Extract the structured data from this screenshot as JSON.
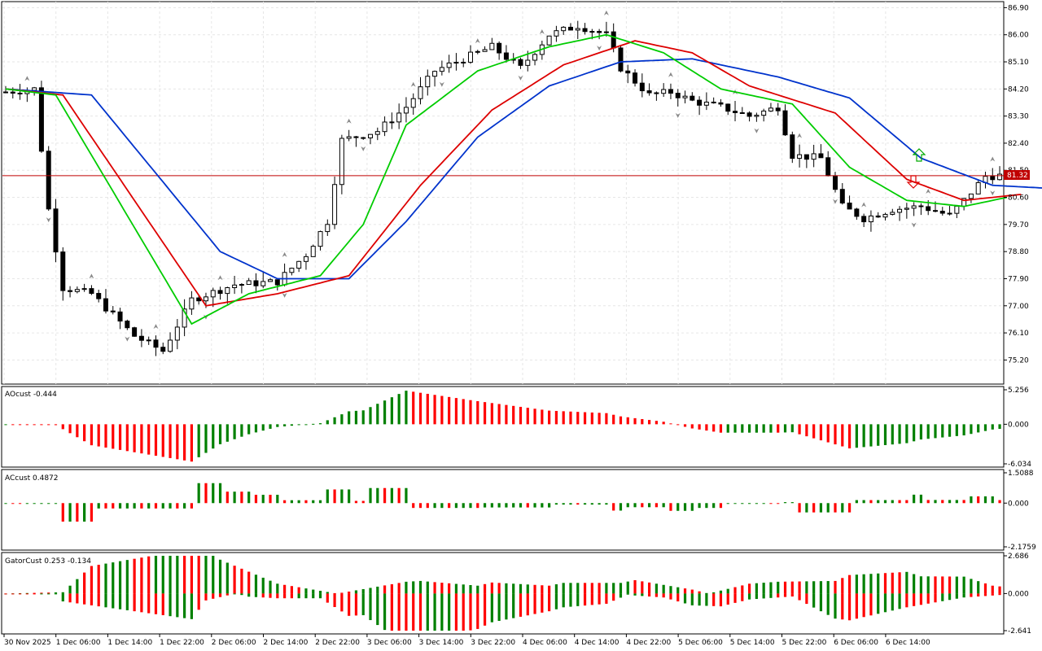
{
  "colors": {
    "up_bar": "#008000",
    "down_bar": "#ff0000",
    "jaw": "#0033cc",
    "teeth": "#dd0000",
    "lips": "#00cc00",
    "price_line": "#c00000",
    "grid": "#e6e6e6",
    "candle": "#000000",
    "fractal": "#888888"
  },
  "price_pane": {
    "current_price": "81.32",
    "y_ticks": [
      "86.90",
      "86.00",
      "85.10",
      "84.20",
      "83.30",
      "82.40",
      "81.50",
      "80.60",
      "79.70",
      "78.80",
      "77.90",
      "77.00",
      "76.10",
      "75.20"
    ],
    "y_range": [
      74.4,
      87.1
    ]
  },
  "ao_pane": {
    "label": "AOcust -0.444",
    "y_ticks": [
      "5.256",
      "0.000",
      "-6.034"
    ]
  },
  "ac_pane": {
    "label": "ACcust 0.4872",
    "y_ticks": [
      "1.5088",
      "0.000",
      "-2.1759"
    ]
  },
  "gator_pane": {
    "label": "GatorCust 0.253 -0.134",
    "y_ticks": [
      "2.686",
      "0.000",
      "-2.641"
    ]
  },
  "x_labels": [
    "30 Nov 2025",
    "1 Dec 06:00",
    "1 Dec 14:00",
    "1 Dec 22:00",
    "2 Dec 06:00",
    "2 Dec 14:00",
    "2 Dec 22:00",
    "3 Dec 06:00",
    "3 Dec 14:00",
    "3 Dec 22:00",
    "4 Dec 06:00",
    "4 Dec 14:00",
    "4 Dec 22:00",
    "5 Dec 06:00",
    "5 Dec 14:00",
    "5 Dec 22:00",
    "6 Dec 06:00",
    "6 Dec 14:00"
  ],
  "chart_data": {
    "type": "candlestick",
    "symbol_panes": [
      "price",
      "AOcust",
      "ACcust",
      "GatorCust"
    ],
    "price_keypoints": [
      [
        0,
        84.1
      ],
      [
        4,
        84.2
      ],
      [
        6,
        80.2
      ],
      [
        8,
        77.6
      ],
      [
        12,
        77.4
      ],
      [
        18,
        76.0
      ],
      [
        22,
        75.5
      ],
      [
        26,
        77.2
      ],
      [
        32,
        77.7
      ],
      [
        38,
        77.8
      ],
      [
        42,
        78.7
      ],
      [
        45,
        79.8
      ],
      [
        47,
        82.5
      ],
      [
        52,
        82.8
      ],
      [
        56,
        83.6
      ],
      [
        60,
        84.8
      ],
      [
        63,
        85.1
      ],
      [
        68,
        85.6
      ],
      [
        72,
        84.9
      ],
      [
        76,
        86.0
      ],
      [
        80,
        86.3
      ],
      [
        84,
        86.0
      ],
      [
        86,
        84.9
      ],
      [
        90,
        84.0
      ],
      [
        93,
        84.1
      ],
      [
        96,
        83.8
      ],
      [
        100,
        83.6
      ],
      [
        104,
        83.3
      ],
      [
        108,
        83.6
      ],
      [
        110,
        82.0
      ],
      [
        114,
        81.9
      ],
      [
        117,
        80.3
      ],
      [
        120,
        79.9
      ],
      [
        124,
        80.2
      ],
      [
        128,
        80.3
      ],
      [
        132,
        80.0
      ],
      [
        134,
        80.5
      ],
      [
        137,
        81.3
      ],
      [
        139,
        81.32
      ]
    ],
    "jaw_keypoints": [
      [
        0,
        84.2
      ],
      [
        12,
        84.0
      ],
      [
        30,
        78.8
      ],
      [
        38,
        77.9
      ],
      [
        48,
        77.9
      ],
      [
        56,
        79.8
      ],
      [
        66,
        82.6
      ],
      [
        76,
        84.3
      ],
      [
        86,
        85.1
      ],
      [
        96,
        85.2
      ],
      [
        108,
        84.6
      ],
      [
        118,
        83.9
      ],
      [
        128,
        81.9
      ],
      [
        138,
        81.0
      ],
      [
        146,
        80.9
      ]
    ],
    "teeth_keypoints": [
      [
        0,
        84.2
      ],
      [
        8,
        84.0
      ],
      [
        28,
        77.0
      ],
      [
        38,
        77.4
      ],
      [
        48,
        78.0
      ],
      [
        58,
        81.0
      ],
      [
        68,
        83.5
      ],
      [
        78,
        85.0
      ],
      [
        88,
        85.8
      ],
      [
        96,
        85.4
      ],
      [
        104,
        84.3
      ],
      [
        116,
        83.4
      ],
      [
        126,
        81.2
      ],
      [
        134,
        80.5
      ],
      [
        142,
        80.7
      ]
    ],
    "lips_keypoints": [
      [
        0,
        84.2
      ],
      [
        7,
        84.0
      ],
      [
        26,
        76.4
      ],
      [
        34,
        77.4
      ],
      [
        44,
        78.0
      ],
      [
        50,
        79.7
      ],
      [
        56,
        83.0
      ],
      [
        66,
        84.8
      ],
      [
        76,
        85.6
      ],
      [
        84,
        86.0
      ],
      [
        92,
        85.4
      ],
      [
        100,
        84.2
      ],
      [
        110,
        83.7
      ],
      [
        118,
        81.6
      ],
      [
        126,
        80.5
      ],
      [
        134,
        80.3
      ],
      [
        140,
        80.6
      ]
    ],
    "ao_range": [
      -6.034,
      5.256
    ],
    "ac_range": [
      -2.1759,
      1.5088
    ],
    "gator_range": [
      -2.641,
      2.686
    ]
  }
}
